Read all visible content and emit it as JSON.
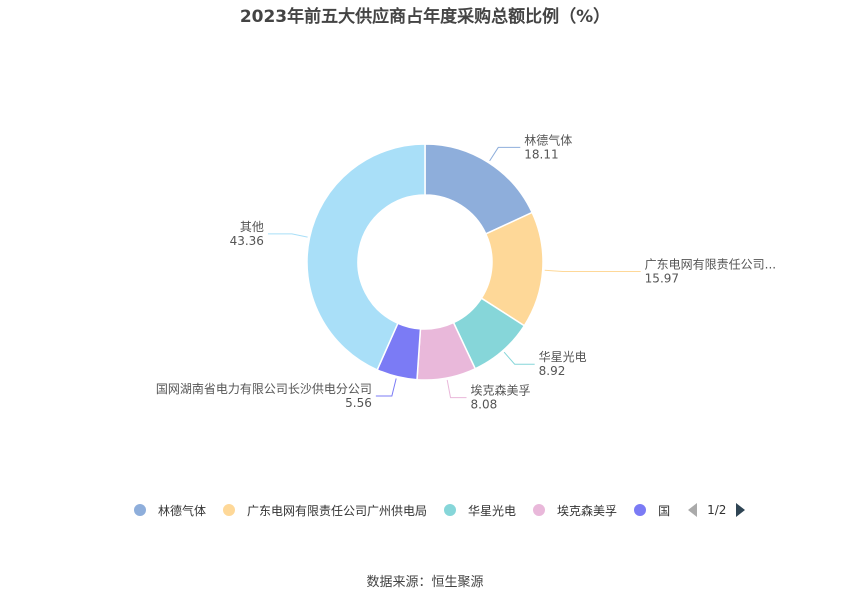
{
  "chart_data": {
    "type": "pie",
    "variant": "donut",
    "title": "2023年前五大供应商占年度采购总额比例（%）",
    "slices": [
      {
        "label": "林德气体",
        "value": 18.11,
        "value_text": "18.11",
        "color": "#8eaedb",
        "callout_label": "林德气体"
      },
      {
        "label": "广东电网有限责任公司广州供电局",
        "value": 15.97,
        "value_text": "15.97",
        "color": "#fed898",
        "callout_label": "广东电网有限责任公司..."
      },
      {
        "label": "华星光电",
        "value": 8.92,
        "value_text": "8.92",
        "color": "#86d6d9",
        "callout_label": "华星光电"
      },
      {
        "label": "埃克森美孚",
        "value": 8.08,
        "value_text": "8.08",
        "color": "#e9b8da",
        "callout_label": "埃克森美孚"
      },
      {
        "label": "国网湖南省电力有限公司长沙供电分公司",
        "value": 5.56,
        "value_text": "5.56",
        "color": "#7b7bf5",
        "callout_label": "国网湖南省电力有限公司长沙供电分公司"
      },
      {
        "label": "其他",
        "value": 43.36,
        "value_text": "43.36",
        "color": "#a9dff8",
        "callout_label": "其他"
      }
    ],
    "legend_placement": "bottom"
  },
  "legend": {
    "items": [
      {
        "label": "林德气体",
        "color": "#8eaedb"
      },
      {
        "label": "广东电网有限责任公司广州供电局",
        "color": "#fed898"
      },
      {
        "label": "华星光电",
        "color": "#86d6d9"
      },
      {
        "label": "埃克森美孚",
        "color": "#e9b8da"
      },
      {
        "label": "国网湖南省电力有限公司长沙供电分公司",
        "color": "#7b7bf5"
      }
    ],
    "page": "1/2"
  },
  "source": "数据来源：恒生聚源"
}
